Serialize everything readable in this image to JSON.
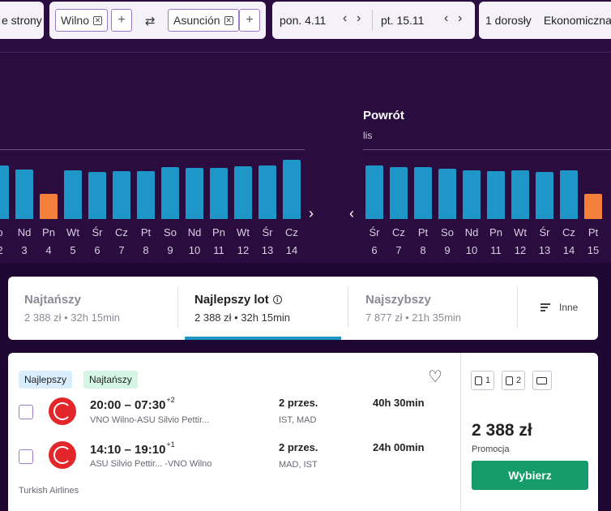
{
  "topbar": {
    "trip_type_label": "e strony",
    "origin": "Wilno",
    "destination": "Asunción",
    "remove_glyph": "✕",
    "add_glyph": "+",
    "swap_glyph": "⇄",
    "depart_date": "pon. 4.11",
    "return_date": "pt. 15.11",
    "chev_left": "‹",
    "chev_right": "›",
    "passengers": "1 dorosły",
    "cabin_class": "Ekonomiczna"
  },
  "outbound_chart": {
    "days": [
      "o",
      "Nd",
      "Pn",
      "Wt",
      "Śr",
      "Cz",
      "Pt",
      "So",
      "Nd",
      "Pn",
      "Wt",
      "Śr",
      "Cz"
    ],
    "dates": [
      "2",
      "3",
      "4",
      "5",
      "6",
      "7",
      "8",
      "9",
      "10",
      "11",
      "12",
      "13",
      "14"
    ],
    "bar_heights": [
      66,
      61,
      31,
      60,
      58,
      59,
      59,
      64,
      63,
      63,
      65,
      66,
      73
    ],
    "highlight_index": 2,
    "next_arrow": "›"
  },
  "return_chart": {
    "title": "Powrót",
    "month": "lis",
    "prev_arrow": "‹",
    "days": [
      "Śr",
      "Cz",
      "Pt",
      "So",
      "Nd",
      "Pn",
      "Wt",
      "Śr",
      "Cz",
      "Pt"
    ],
    "dates": [
      "6",
      "7",
      "8",
      "9",
      "10",
      "11",
      "12",
      "13",
      "14",
      "15"
    ],
    "bar_heights": [
      66,
      64,
      64,
      62,
      60,
      59,
      60,
      58,
      60,
      31
    ],
    "highlight_index": 9
  },
  "sort_tabs": [
    {
      "title": "Najtańszy",
      "subtitle": "2 388 zł • 32h 15min"
    },
    {
      "title": "Najlepszy lot",
      "subtitle": "2 388 zł • 32h 15min"
    },
    {
      "title": "Najszybszy",
      "subtitle": "7 877 zł • 21h 35min"
    }
  ],
  "info_glyph": "i",
  "other_label": "Inne",
  "result": {
    "badges": [
      "Najlepszy",
      "Najtańszy"
    ],
    "heart_glyph": "♡",
    "legs": [
      {
        "times": "20:00 – 07:30",
        "day_offset": "+2",
        "route": "VNO Wilno-ASU Silvio Pettir...",
        "stops": "2 przes.",
        "via": "IST, MAD",
        "duration": "40h 30min"
      },
      {
        "times": "14:10 – 19:10",
        "day_offset": "+1",
        "route": "ASU Silvio Pettir...  -VNO Wilno",
        "stops": "2 przes.",
        "via": "MAD, IST",
        "duration": "24h 00min"
      }
    ],
    "airline": "Turkish Airlines",
    "bags": [
      "1",
      "2"
    ],
    "price": "2 388 zł",
    "price_note": "Promocja",
    "select_label": "Wybierz"
  },
  "colors": {
    "bar": "#1e96c8",
    "bar_highlight": "#f4803b",
    "accent": "#1e96c8",
    "cta": "#169b6b"
  }
}
